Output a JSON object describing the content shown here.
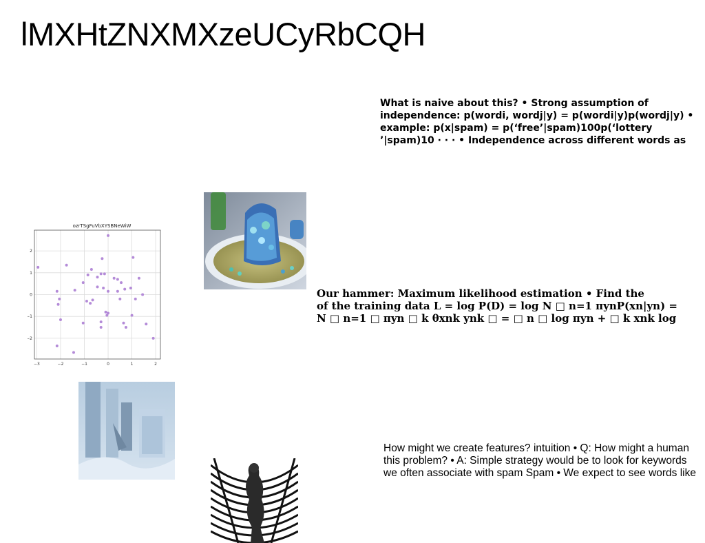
{
  "page": {
    "title": "lMXHtZNXMXzeUCyRbCQH"
  },
  "blocks": {
    "naive": {
      "lines": [
        "What is naive about this? • Strong assumption of",
        "independence: p(wordi, wordj|y) = p(wordi|y)p(wordj|y) •",
        "example: p(x|spam) = p(‘free’|spam)100p(‘lottery",
        "’|spam)10 · · · • Independence across different words as"
      ]
    },
    "hammer": {
      "lines": [
        "Our hammer: Maximum likelihood estimation • Find the",
        "of the training data L = log P(D) = log N □ n=1 πynP(xn|yn) =",
        "N □ n=1 □ πyn □ k θxnk ynk □ = □ n □ log πyn + □ k xnk log"
      ]
    },
    "features": {
      "lines": [
        "How might we create features? intuition • Q: How might a human",
        "this problem? • A: Simple strategy would be to look for keywords",
        "we often associate with spam Spam • We expect to see words like"
      ]
    }
  },
  "images": {
    "bowl": {
      "description_icon": "photo-food-bowl"
    },
    "ice": {
      "description_icon": "photo-ice-architecture"
    },
    "stripes": {
      "description_icon": "photo-figure-stripes"
    }
  },
  "chart_data": {
    "type": "scatter",
    "title": "ozrTSgFuVbXYSBNeWiW",
    "xlim": [
      -3.1,
      2.2
    ],
    "ylim": [
      -2.95,
      2.95
    ],
    "xticks": [
      -3,
      -2,
      -1,
      0,
      1,
      2
    ],
    "yticks": [
      -2,
      -1,
      0,
      1,
      2
    ],
    "grid": true,
    "color": "#b48bd8",
    "points": [
      [
        -2.95,
        1.25
      ],
      [
        -2.15,
        0.15
      ],
      [
        -2.1,
        -0.45
      ],
      [
        -2.05,
        -0.2
      ],
      [
        -2.0,
        -1.15
      ],
      [
        -2.15,
        -2.35
      ],
      [
        -1.75,
        1.35
      ],
      [
        -1.4,
        0.2
      ],
      [
        -1.45,
        -2.65
      ],
      [
        -1.05,
        0.55
      ],
      [
        -1.05,
        -1.3
      ],
      [
        -0.85,
        0.9
      ],
      [
        -0.9,
        -0.3
      ],
      [
        -0.75,
        -0.4
      ],
      [
        -0.7,
        1.15
      ],
      [
        -0.65,
        -0.25
      ],
      [
        -0.45,
        0.8
      ],
      [
        -0.45,
        0.35
      ],
      [
        -0.3,
        0.95
      ],
      [
        -0.3,
        -1.25
      ],
      [
        -0.3,
        -1.5
      ],
      [
        -0.25,
        1.65
      ],
      [
        -0.2,
        0.3
      ],
      [
        -0.15,
        0.95
      ],
      [
        -0.1,
        -0.8
      ],
      [
        -0.05,
        -0.95
      ],
      [
        0.0,
        0.15
      ],
      [
        0.0,
        2.7
      ],
      [
        0.0,
        -0.85
      ],
      [
        0.25,
        0.75
      ],
      [
        0.4,
        0.15
      ],
      [
        0.4,
        0.7
      ],
      [
        0.5,
        -0.2
      ],
      [
        0.55,
        0.55
      ],
      [
        0.65,
        -1.3
      ],
      [
        0.7,
        0.25
      ],
      [
        0.75,
        -1.5
      ],
      [
        0.95,
        0.3
      ],
      [
        1.0,
        -0.95
      ],
      [
        1.05,
        1.7
      ],
      [
        1.15,
        -0.2
      ],
      [
        1.3,
        0.75
      ],
      [
        1.45,
        0.0
      ],
      [
        1.6,
        -1.35
      ],
      [
        1.9,
        -2.0
      ]
    ]
  }
}
